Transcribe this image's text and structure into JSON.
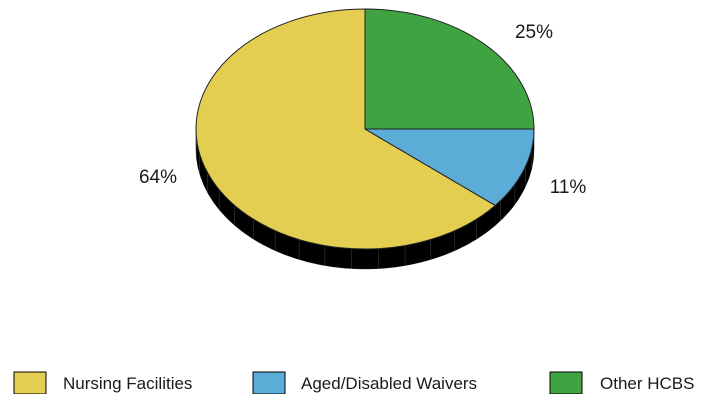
{
  "chart_data": {
    "type": "pie",
    "style": "3d",
    "title": "",
    "slices": [
      {
        "name": "Nursing Facilities",
        "value": 64,
        "label": "64%",
        "color": "#E4CE52"
      },
      {
        "name": "Aged/Disabled Waivers",
        "value": 11,
        "label": "11%",
        "color": "#5BACD6"
      },
      {
        "name": "Other HCBS",
        "value": 25,
        "label": "25%",
        "color": "#40A342"
      }
    ],
    "legend": {
      "placement": "bottom",
      "entries": [
        "Nursing Facilities",
        "Aged/Disabled Waivers",
        "Other HCBS"
      ]
    }
  }
}
